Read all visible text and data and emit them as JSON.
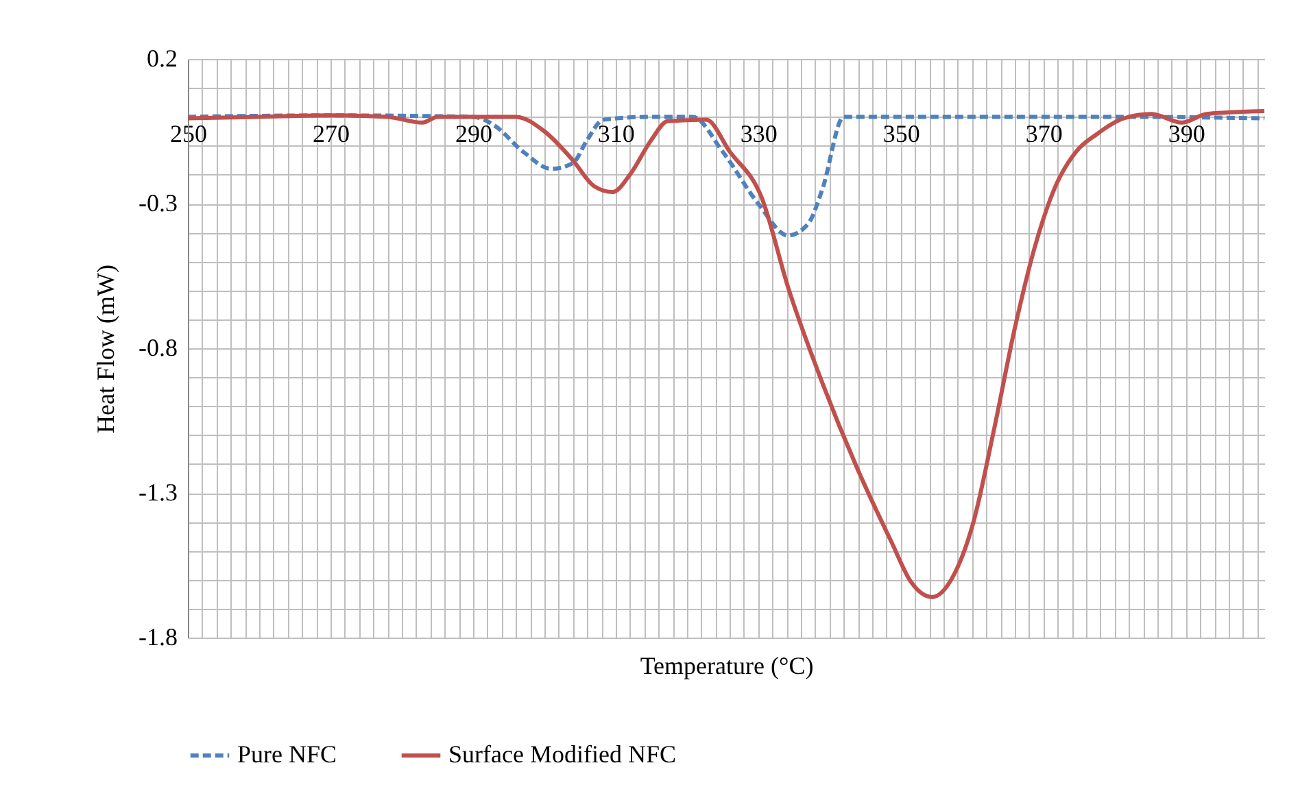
{
  "chart_data": {
    "type": "line",
    "xlabel": "Temperature (°C)",
    "ylabel": "Heat Flow (mW)",
    "xlim": [
      250,
      401
    ],
    "ylim": [
      -1.8,
      0.2
    ],
    "xticks": [
      250,
      {
        "value": 252,
        "label": null
      },
      {
        "value": 254,
        "label": null
      },
      {
        "value": 256,
        "label": null
      },
      {
        "value": 258,
        "label": null
      },
      {
        "value": 260,
        "label": null
      },
      {
        "value": 262,
        "label": null
      },
      {
        "value": 264,
        "label": null
      },
      {
        "value": 266,
        "label": null
      },
      {
        "value": 268,
        "label": null
      },
      270,
      {
        "value": 272,
        "label": null
      },
      {
        "value": 274,
        "label": null
      },
      {
        "value": 276,
        "label": null
      },
      {
        "value": 278,
        "label": null
      },
      {
        "value": 280,
        "label": null
      },
      {
        "value": 282,
        "label": null
      },
      {
        "value": 284,
        "label": null
      },
      {
        "value": 286,
        "label": null
      },
      {
        "value": 288,
        "label": null
      },
      290,
      {
        "value": 292,
        "label": null
      },
      {
        "value": 294,
        "label": null
      },
      {
        "value": 296,
        "label": null
      },
      {
        "value": 298,
        "label": null
      },
      {
        "value": 300,
        "label": null
      },
      {
        "value": 302,
        "label": null
      },
      {
        "value": 304,
        "label": null
      },
      {
        "value": 306,
        "label": null
      },
      {
        "value": 308,
        "label": null
      },
      310,
      {
        "value": 312,
        "label": null
      },
      {
        "value": 314,
        "label": null
      },
      {
        "value": 316,
        "label": null
      },
      {
        "value": 318,
        "label": null
      },
      {
        "value": 320,
        "label": null
      },
      {
        "value": 322,
        "label": null
      },
      {
        "value": 324,
        "label": null
      },
      {
        "value": 326,
        "label": null
      },
      {
        "value": 328,
        "label": null
      },
      330,
      {
        "value": 332,
        "label": null
      },
      {
        "value": 334,
        "label": null
      },
      {
        "value": 336,
        "label": null
      },
      {
        "value": 338,
        "label": null
      },
      {
        "value": 340,
        "label": null
      },
      {
        "value": 342,
        "label": null
      },
      {
        "value": 344,
        "label": null
      },
      {
        "value": 346,
        "label": null
      },
      {
        "value": 348,
        "label": null
      },
      350,
      {
        "value": 352,
        "label": null
      },
      {
        "value": 354,
        "label": null
      },
      {
        "value": 356,
        "label": null
      },
      {
        "value": 358,
        "label": null
      },
      {
        "value": 360,
        "label": null
      },
      {
        "value": 362,
        "label": null
      },
      {
        "value": 364,
        "label": null
      },
      {
        "value": 366,
        "label": null
      },
      {
        "value": 368,
        "label": null
      },
      370,
      {
        "value": 372,
        "label": null
      },
      {
        "value": 374,
        "label": null
      },
      {
        "value": 376,
        "label": null
      },
      {
        "value": 378,
        "label": null
      },
      {
        "value": 380,
        "label": null
      },
      {
        "value": 382,
        "label": null
      },
      {
        "value": 384,
        "label": null
      },
      {
        "value": 386,
        "label": null
      },
      {
        "value": 388,
        "label": null
      },
      390,
      {
        "value": 392,
        "label": null
      },
      {
        "value": 394,
        "label": null
      },
      {
        "value": 396,
        "label": null
      },
      {
        "value": 398,
        "label": null
      },
      {
        "value": 400,
        "label": null
      }
    ],
    "yticks": [
      0.2,
      {
        "value": 0.1,
        "label": null
      },
      {
        "value": 0,
        "label": null
      },
      {
        "value": -0.1,
        "label": null
      },
      {
        "value": -0.2,
        "label": null
      },
      -0.3,
      {
        "value": -0.4,
        "label": null
      },
      {
        "value": -0.5,
        "label": null
      },
      {
        "value": -0.6,
        "label": null
      },
      {
        "value": -0.7,
        "label": null
      },
      -0.8,
      {
        "value": -0.9,
        "label": null
      },
      {
        "value": -1.0,
        "label": null
      },
      {
        "value": -1.1,
        "label": null
      },
      {
        "value": -1.2,
        "label": null
      },
      -1.3,
      {
        "value": -1.4,
        "label": null
      },
      {
        "value": -1.5,
        "label": null
      },
      {
        "value": -1.6,
        "label": null
      },
      {
        "value": -1.7,
        "label": null
      },
      -1.8
    ],
    "grid": true,
    "legend": "bottom",
    "series": [
      {
        "name": "Pure NFC",
        "color": "#4f81bd",
        "line_style": "dashed",
        "x": [
          250,
          270,
          290,
          293,
          297,
          301,
          304,
          306,
          308.3,
          315,
          320.8,
          325,
          330,
          334.2,
          337,
          339,
          342,
          360,
          380,
          401
        ],
        "values": [
          0,
          0.005,
          0,
          -0.03,
          -0.12,
          -0.18,
          -0.16,
          -0.08,
          -0.01,
          0,
          0,
          -0.12,
          -0.3,
          -0.41,
          -0.37,
          -0.25,
          0,
          0,
          0,
          -0.005
        ]
      },
      {
        "name": "Surface Modified NFC",
        "color": "#c0504d",
        "line_style": "solid",
        "x": [
          250,
          260,
          270,
          278,
          282.9,
          285,
          296,
          300,
          304,
          307,
          309.6,
          312,
          315,
          317.3,
          322.7,
          326,
          330.5,
          334.2,
          339,
          343.8,
          348.7,
          351.5,
          354.4,
          357.3,
          360.2,
          363,
          366,
          368.8,
          371.7,
          374.6,
          377.5,
          381.3,
          385.2,
          389.4,
          392.9,
          401
        ],
        "values": [
          -0.005,
          0,
          0.005,
          0,
          -0.02,
          0,
          0,
          -0.05,
          -0.15,
          -0.24,
          -0.26,
          -0.2,
          -0.08,
          -0.015,
          -0.01,
          -0.12,
          -0.28,
          -0.59,
          -0.92,
          -1.21,
          -1.47,
          -1.61,
          -1.66,
          -1.59,
          -1.4,
          -1.09,
          -0.73,
          -0.45,
          -0.24,
          -0.12,
          -0.06,
          -0.005,
          0.01,
          -0.02,
          0.01,
          0.02
        ]
      }
    ]
  }
}
